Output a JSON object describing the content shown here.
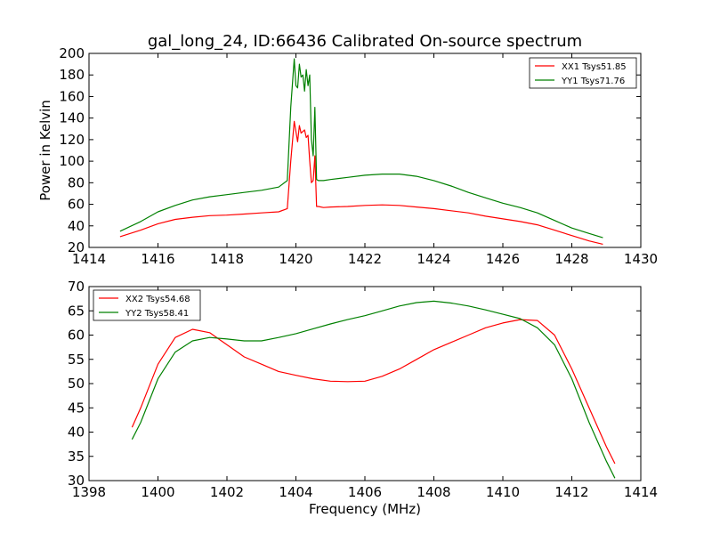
{
  "figure_title": "gal_long_24, ID:66436 Calibrated On-source spectrum",
  "chart_data": [
    {
      "type": "line",
      "title": "gal_long_24, ID:66436 Calibrated On-source spectrum",
      "xlabel": "",
      "ylabel": "Power in Kelvin",
      "xlim": [
        1414,
        1430
      ],
      "ylim": [
        20,
        200
      ],
      "xticks": [
        1414,
        1416,
        1418,
        1420,
        1422,
        1424,
        1426,
        1428,
        1430
      ],
      "yticks": [
        20,
        40,
        60,
        80,
        100,
        120,
        140,
        160,
        180,
        200
      ],
      "grid": false,
      "legend_position": "top-right",
      "series": [
        {
          "name": "XX1 Tsys51.85",
          "color": "#ff0000",
          "x": [
            1414.9,
            1415.5,
            1416.0,
            1416.5,
            1417.0,
            1417.5,
            1418.0,
            1418.5,
            1419.0,
            1419.5,
            1419.75,
            1419.85,
            1419.95,
            1420.05,
            1420.1,
            1420.15,
            1420.25,
            1420.3,
            1420.35,
            1420.4,
            1420.45,
            1420.5,
            1420.55,
            1420.6,
            1420.65,
            1420.8,
            1421.0,
            1421.5,
            1422.0,
            1422.5,
            1423.0,
            1423.5,
            1424.0,
            1424.5,
            1425.0,
            1425.5,
            1426.0,
            1426.5,
            1427.0,
            1427.5,
            1428.0,
            1428.5,
            1428.9
          ],
          "values": [
            30,
            36,
            42,
            46,
            48,
            49.5,
            50,
            51,
            52,
            53,
            56,
            100,
            137,
            118,
            133,
            126,
            129,
            122,
            124,
            100,
            80,
            82,
            105,
            58,
            58,
            57,
            57.5,
            58,
            59,
            59.5,
            59,
            57.5,
            56,
            54,
            52,
            49,
            46.5,
            44,
            41,
            36,
            31,
            26,
            23
          ]
        },
        {
          "name": "YY1 Tsys71.76",
          "color": "#008000",
          "x": [
            1414.9,
            1415.5,
            1416.0,
            1416.5,
            1417.0,
            1417.5,
            1418.0,
            1418.5,
            1419.0,
            1419.5,
            1419.75,
            1419.85,
            1419.95,
            1420.0,
            1420.05,
            1420.1,
            1420.15,
            1420.2,
            1420.25,
            1420.3,
            1420.35,
            1420.4,
            1420.45,
            1420.5,
            1420.55,
            1420.6,
            1420.65,
            1420.8,
            1421.0,
            1421.5,
            1422.0,
            1422.5,
            1423.0,
            1423.5,
            1424.0,
            1424.5,
            1425.0,
            1425.5,
            1426.0,
            1426.5,
            1427.0,
            1427.5,
            1428.0,
            1428.5,
            1428.9
          ],
          "values": [
            35,
            44,
            53,
            59,
            64,
            67,
            69,
            71,
            73,
            76,
            82,
            150,
            195,
            170,
            168,
            190,
            178,
            180,
            165,
            185,
            170,
            180,
            120,
            105,
            150,
            83,
            82,
            82,
            83,
            85,
            87,
            88,
            88,
            86,
            82,
            77,
            71,
            66,
            61,
            57,
            52,
            45,
            38,
            33,
            29
          ]
        }
      ]
    },
    {
      "type": "line",
      "title": "",
      "xlabel": "Frequency (MHz)",
      "ylabel": "",
      "xlim": [
        1398,
        1414
      ],
      "ylim": [
        30,
        70
      ],
      "xticks": [
        1398,
        1400,
        1402,
        1404,
        1406,
        1408,
        1410,
        1412,
        1414
      ],
      "yticks": [
        30,
        35,
        40,
        45,
        50,
        55,
        60,
        65,
        70
      ],
      "grid": false,
      "legend_position": "top-left",
      "series": [
        {
          "name": "XX2 Tsys54.68",
          "color": "#ff0000",
          "x": [
            1399.25,
            1399.5,
            1400.0,
            1400.5,
            1401.0,
            1401.5,
            1402.0,
            1402.5,
            1403.0,
            1403.5,
            1404.0,
            1404.5,
            1405.0,
            1405.5,
            1406.0,
            1406.5,
            1407.0,
            1407.5,
            1408.0,
            1408.5,
            1409.0,
            1409.5,
            1410.0,
            1410.5,
            1411.0,
            1411.5,
            1412.0,
            1412.5,
            1413.0,
            1413.25
          ],
          "values": [
            41,
            45,
            54,
            59.5,
            61.2,
            60.5,
            58,
            55.5,
            54,
            52.5,
            51.7,
            51,
            50.5,
            50.4,
            50.5,
            51.5,
            53,
            55,
            57,
            58.5,
            60,
            61.5,
            62.5,
            63.2,
            63,
            60,
            53,
            45,
            37,
            33.5
          ]
        },
        {
          "name": "YY2 Tsys58.41",
          "color": "#008000",
          "x": [
            1399.25,
            1399.5,
            1400.0,
            1400.5,
            1401.0,
            1401.5,
            1402.0,
            1402.5,
            1403.0,
            1403.5,
            1404.0,
            1404.5,
            1405.0,
            1405.5,
            1406.0,
            1406.5,
            1407.0,
            1407.5,
            1408.0,
            1408.5,
            1409.0,
            1409.5,
            1410.0,
            1410.5,
            1411.0,
            1411.5,
            1412.0,
            1412.5,
            1413.0,
            1413.25
          ],
          "values": [
            38.5,
            42,
            51,
            56.5,
            58.8,
            59.5,
            59.2,
            58.8,
            58.8,
            59.5,
            60.3,
            61.3,
            62.3,
            63.2,
            64,
            65,
            66,
            66.7,
            67,
            66.6,
            66,
            65.2,
            64.3,
            63.4,
            61.5,
            58,
            51,
            42,
            34,
            30.5
          ]
        }
      ]
    }
  ]
}
